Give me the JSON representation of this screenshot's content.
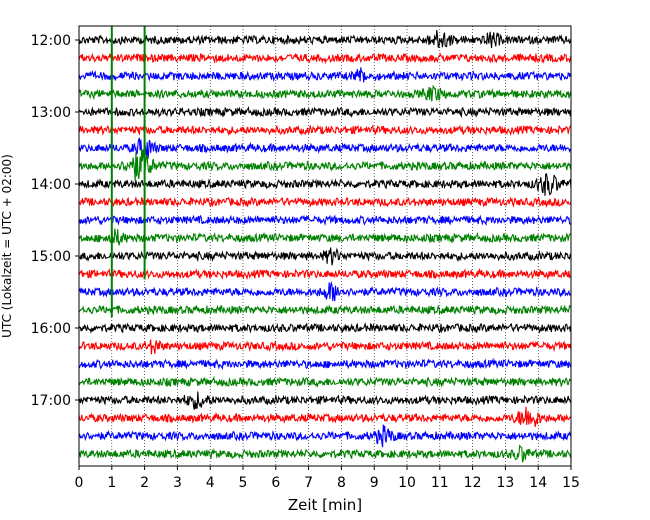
{
  "chart_data": {
    "type": "line",
    "title": "",
    "xlabel": "Zeit  [min]",
    "ylabel": "UTC (Lokalzeit = UTC + 02:00)",
    "xlim": [
      0,
      15
    ],
    "x_ticks": [
      "0",
      "1",
      "2",
      "3",
      "4",
      "5",
      "6",
      "7",
      "8",
      "9",
      "10",
      "11",
      "12",
      "13",
      "14",
      "15"
    ],
    "y_ticks": [
      {
        "label": "12:00",
        "row": 0
      },
      {
        "label": "13:00",
        "row": 4
      },
      {
        "label": "14:00",
        "row": 8
      },
      {
        "label": "15:00",
        "row": 12
      },
      {
        "label": "16:00",
        "row": 16
      },
      {
        "label": "17:00",
        "row": 20
      }
    ],
    "trace_colors": [
      "#000000",
      "#ff0000",
      "#0000ff",
      "#008000"
    ],
    "trace_count": 24,
    "minutes_per_trace": 15,
    "grid": "vertical dotted",
    "markers": [
      {
        "x": 1.0,
        "color": "#008000",
        "from_row": 0,
        "to_row": 15.4
      },
      {
        "x": 2.0,
        "color": "#008000",
        "from_row": 0,
        "to_row": 13.3
      }
    ],
    "events": [
      {
        "row": 7,
        "x": 1.85,
        "amp": 2.2,
        "width": 0.35
      },
      {
        "row": 6,
        "x": 2.0,
        "amp": 1.6,
        "width": 0.25
      },
      {
        "row": 0,
        "x": 11.0,
        "amp": 1.2,
        "width": 0.3
      },
      {
        "row": 0,
        "x": 12.6,
        "amp": 1.0,
        "width": 0.2
      },
      {
        "row": 8,
        "x": 14.3,
        "amp": 1.5,
        "width": 0.3
      },
      {
        "row": 21,
        "x": 13.7,
        "amp": 1.6,
        "width": 0.3
      },
      {
        "row": 17,
        "x": 2.3,
        "amp": 1.1,
        "width": 0.15
      },
      {
        "row": 11,
        "x": 1.1,
        "amp": 1.0,
        "width": 0.25
      },
      {
        "row": 12,
        "x": 7.7,
        "amp": 1.0,
        "width": 0.2
      },
      {
        "row": 14,
        "x": 7.7,
        "amp": 1.2,
        "width": 0.25
      },
      {
        "row": 22,
        "x": 9.3,
        "amp": 1.2,
        "width": 0.25
      },
      {
        "row": 23,
        "x": 13.5,
        "amp": 1.0,
        "width": 0.2
      },
      {
        "row": 20,
        "x": 3.6,
        "amp": 1.0,
        "width": 0.3
      },
      {
        "row": 3,
        "x": 10.8,
        "amp": 0.9,
        "width": 0.25
      },
      {
        "row": 2,
        "x": 8.6,
        "amp": 0.9,
        "width": 0.2
      }
    ]
  }
}
